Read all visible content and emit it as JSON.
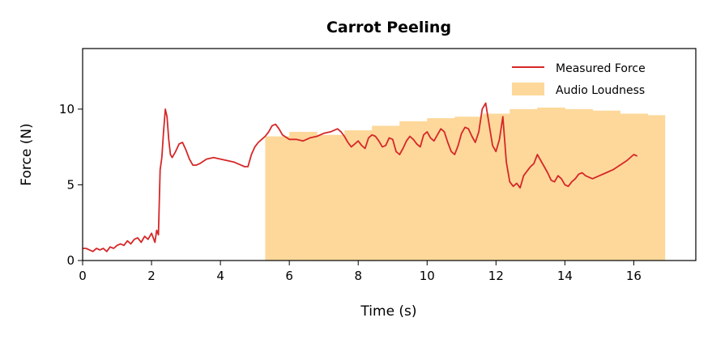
{
  "chart_data": {
    "type": "line",
    "title": "Carrot Peeling",
    "xlabel": "Time (s)",
    "ylabel": "Force (N)",
    "xlim": [
      0,
      17.8
    ],
    "ylim": [
      0,
      14
    ],
    "xticks": [
      0,
      2,
      4,
      6,
      8,
      10,
      12,
      14,
      16
    ],
    "yticks": [
      0,
      5,
      10
    ],
    "grid": false,
    "legend_position": "top-right",
    "colors": {
      "force": "#d62728",
      "audio": "#fdd89a"
    },
    "series": [
      {
        "name": "Measured Force",
        "type": "line",
        "x": [
          0.0,
          0.1,
          0.2,
          0.3,
          0.4,
          0.5,
          0.6,
          0.7,
          0.8,
          0.9,
          1.0,
          1.1,
          1.2,
          1.3,
          1.4,
          1.5,
          1.6,
          1.7,
          1.8,
          1.9,
          2.0,
          2.1,
          2.15,
          2.2,
          2.25,
          2.3,
          2.35,
          2.4,
          2.45,
          2.5,
          2.55,
          2.6,
          2.7,
          2.8,
          2.9,
          3.0,
          3.1,
          3.2,
          3.3,
          3.4,
          3.6,
          3.8,
          4.0,
          4.2,
          4.4,
          4.6,
          4.7,
          4.8,
          4.9,
          5.0,
          5.1,
          5.2,
          5.3,
          5.4,
          5.5,
          5.6,
          5.7,
          5.8,
          6.0,
          6.2,
          6.4,
          6.6,
          6.8,
          7.0,
          7.2,
          7.4,
          7.5,
          7.6,
          7.7,
          7.8,
          7.9,
          8.0,
          8.1,
          8.2,
          8.3,
          8.4,
          8.5,
          8.6,
          8.7,
          8.8,
          8.9,
          9.0,
          9.1,
          9.2,
          9.3,
          9.4,
          9.5,
          9.6,
          9.7,
          9.8,
          9.9,
          10.0,
          10.1,
          10.2,
          10.3,
          10.4,
          10.5,
          10.6,
          10.7,
          10.8,
          10.9,
          11.0,
          11.1,
          11.2,
          11.3,
          11.4,
          11.5,
          11.6,
          11.7,
          11.8,
          11.9,
          12.0,
          12.1,
          12.2,
          12.3,
          12.4,
          12.5,
          12.6,
          12.7,
          12.8,
          12.9,
          13.0,
          13.1,
          13.2,
          13.3,
          13.4,
          13.5,
          13.6,
          13.7,
          13.8,
          13.9,
          14.0,
          14.1,
          14.2,
          14.3,
          14.4,
          14.5,
          14.6,
          14.7,
          14.8,
          14.9,
          15.0,
          15.2,
          15.4,
          15.6,
          15.8,
          16.0,
          16.1
        ],
        "y": [
          0.8,
          0.8,
          0.7,
          0.6,
          0.8,
          0.7,
          0.8,
          0.6,
          0.9,
          0.8,
          1.0,
          1.1,
          1.0,
          1.3,
          1.1,
          1.4,
          1.5,
          1.2,
          1.6,
          1.4,
          1.8,
          1.2,
          2.0,
          1.7,
          6.0,
          6.8,
          8.5,
          10.0,
          9.5,
          8.0,
          7.0,
          6.8,
          7.2,
          7.7,
          7.8,
          7.3,
          6.7,
          6.3,
          6.3,
          6.4,
          6.7,
          6.8,
          6.7,
          6.6,
          6.5,
          6.3,
          6.2,
          6.2,
          7.0,
          7.5,
          7.8,
          8.0,
          8.2,
          8.5,
          8.9,
          9.0,
          8.7,
          8.3,
          8.0,
          8.0,
          7.9,
          8.1,
          8.2,
          8.4,
          8.5,
          8.7,
          8.5,
          8.2,
          7.8,
          7.5,
          7.7,
          7.9,
          7.6,
          7.4,
          8.1,
          8.3,
          8.2,
          7.9,
          7.5,
          7.6,
          8.1,
          8.0,
          7.2,
          7.0,
          7.4,
          7.9,
          8.2,
          8.0,
          7.7,
          7.5,
          8.3,
          8.5,
          8.1,
          7.9,
          8.3,
          8.7,
          8.5,
          7.8,
          7.2,
          7.0,
          7.6,
          8.4,
          8.8,
          8.7,
          8.2,
          7.8,
          8.5,
          10.0,
          10.4,
          9.0,
          7.6,
          7.2,
          8.0,
          9.5,
          6.5,
          5.2,
          4.9,
          5.1,
          4.8,
          5.6,
          5.9,
          6.2,
          6.4,
          7.0,
          6.6,
          6.2,
          5.8,
          5.3,
          5.2,
          5.6,
          5.4,
          5.0,
          4.9,
          5.2,
          5.4,
          5.7,
          5.8,
          5.6,
          5.5,
          5.4,
          5.5,
          5.6,
          5.8,
          6.0,
          6.3,
          6.6,
          7.0,
          6.9
        ]
      },
      {
        "name": "Audio Loudness",
        "type": "step-area",
        "x": [
          5.3,
          6.0,
          6.8,
          7.6,
          8.4,
          9.2,
          10.0,
          10.8,
          11.6,
          12.4,
          13.2,
          14.0,
          14.8,
          15.6,
          16.4,
          16.9
        ],
        "y": [
          8.2,
          8.5,
          8.3,
          8.6,
          8.9,
          9.2,
          9.4,
          9.5,
          9.7,
          10.0,
          10.1,
          10.0,
          9.9,
          9.7,
          9.6,
          9.6
        ]
      }
    ]
  }
}
